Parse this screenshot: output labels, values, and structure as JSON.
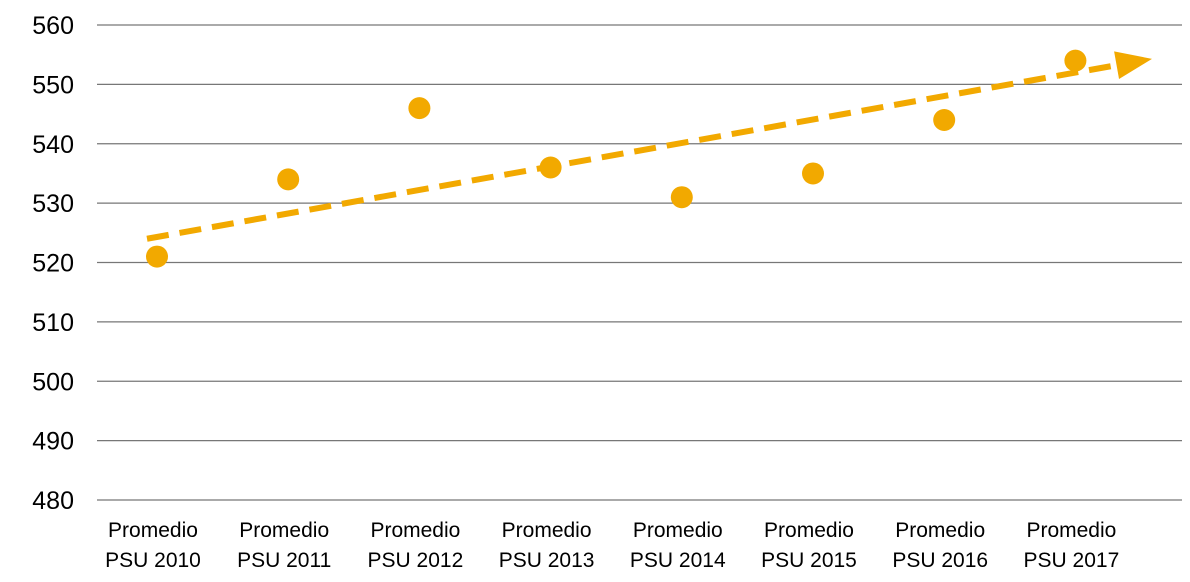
{
  "chart_data": {
    "type": "scatter",
    "title": "",
    "xlabel": "",
    "ylabel": "",
    "categories": [
      [
        "Promedio",
        "PSU 2010"
      ],
      [
        "Promedio",
        "PSU 2011"
      ],
      [
        "Promedio",
        "PSU 2012"
      ],
      [
        "Promedio",
        "PSU 2013"
      ],
      [
        "Promedio",
        "PSU 2014"
      ],
      [
        "Promedio",
        "PSU 2015"
      ],
      [
        "Promedio",
        "PSU 2016"
      ],
      [
        "Promedio",
        "PSU 2017"
      ]
    ],
    "values": [
      521,
      534,
      546,
      536,
      531,
      535,
      544,
      554
    ],
    "ylim": [
      480,
      560
    ],
    "yticks": [
      480,
      490,
      500,
      510,
      520,
      530,
      540,
      550,
      560
    ],
    "grid": "horizontal",
    "trendline": {
      "style": "dashed",
      "arrow": true,
      "start_value": 524,
      "end_value": 554
    },
    "colors": {
      "marker": "#F2A900",
      "trend": "#F2A900",
      "grid": "#777777"
    }
  }
}
